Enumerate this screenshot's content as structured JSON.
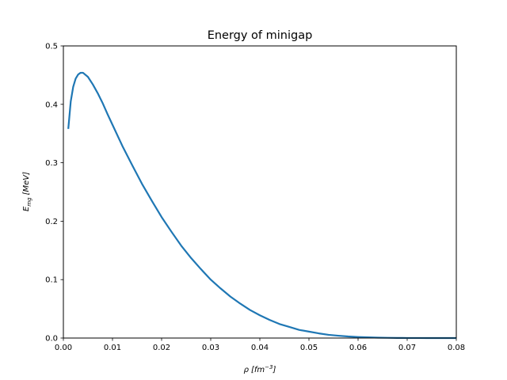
{
  "chart_data": {
    "type": "line",
    "title": "Energy of minigap",
    "xlabel": {
      "symbol": "ρ",
      "unit_prefix": "[fm",
      "unit_exponent": "−3",
      "unit_suffix": "]"
    },
    "ylabel": {
      "symbol": "E",
      "subscript": "mg",
      "unit": "[MeV]"
    },
    "xlim": [
      0.0,
      0.08
    ],
    "ylim": [
      0.0,
      0.5
    ],
    "xticks": [
      0.0,
      0.01,
      0.02,
      0.03,
      0.04,
      0.05,
      0.06,
      0.07,
      0.08
    ],
    "xtick_labels": [
      "0.00",
      "0.01",
      "0.02",
      "0.03",
      "0.04",
      "0.05",
      "0.06",
      "0.07",
      "0.08"
    ],
    "yticks": [
      0.0,
      0.1,
      0.2,
      0.3,
      0.4,
      0.5
    ],
    "ytick_labels": [
      "0.0",
      "0.1",
      "0.2",
      "0.3",
      "0.4",
      "0.5"
    ],
    "grid": false,
    "legend": "none",
    "series": [
      {
        "color": "#1f77b4",
        "x": [
          0.001,
          0.0015,
          0.002,
          0.0025,
          0.003,
          0.0035,
          0.004,
          0.005,
          0.006,
          0.007,
          0.008,
          0.009,
          0.01,
          0.012,
          0.014,
          0.016,
          0.018,
          0.02,
          0.022,
          0.024,
          0.026,
          0.028,
          0.03,
          0.032,
          0.034,
          0.036,
          0.038,
          0.04,
          0.042,
          0.044,
          0.046,
          0.048,
          0.05,
          0.052,
          0.054,
          0.056,
          0.058,
          0.06,
          0.062,
          0.064,
          0.066,
          0.068,
          0.07,
          0.072,
          0.074,
          0.076,
          0.078,
          0.08
        ],
        "y": [
          0.358,
          0.405,
          0.43,
          0.444,
          0.451,
          0.454,
          0.454,
          0.447,
          0.434,
          0.419,
          0.402,
          0.383,
          0.365,
          0.329,
          0.296,
          0.264,
          0.235,
          0.207,
          0.182,
          0.158,
          0.137,
          0.118,
          0.1,
          0.085,
          0.071,
          0.059,
          0.048,
          0.039,
          0.031,
          0.024,
          0.019,
          0.014,
          0.011,
          0.008,
          0.0055,
          0.004,
          0.0027,
          0.0018,
          0.0012,
          0.0007,
          0.0004,
          0.0002,
          0.0001,
          5e-05,
          2e-05,
          1e-05,
          0.0,
          0.0
        ]
      }
    ]
  }
}
